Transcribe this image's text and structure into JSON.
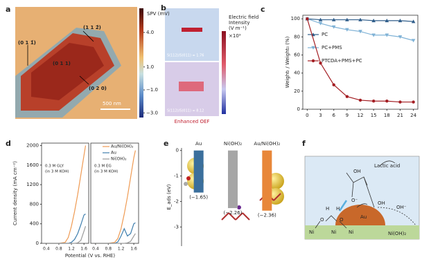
{
  "panel_letters": [
    "a",
    "b",
    "c",
    "d",
    "e",
    "f"
  ],
  "panel_a": {
    "colorbar_title": "SPV (mV)",
    "colorbar_lim": [
      -3.4,
      6.1
    ],
    "colorbar_ticks": [
      {
        "value": 4,
        "label": "4.0"
      },
      {
        "value": 1,
        "label": "1.0"
      },
      {
        "value": -1,
        "label": "−1.0"
      },
      {
        "value": -3,
        "label": "−3.0"
      }
    ],
    "labels": [
      "(0 1 1̄)",
      "(1 1 2̄)",
      "(0 1 1)",
      "(0 2 0)"
    ],
    "scale_bar": "500 nm"
  },
  "panel_b": {
    "colorbar_title": [
      "Electric field",
      "Intensity",
      "(V m⁻¹)"
    ],
    "colorbar_scale": "×10⁹",
    "labels": [
      "S(112)/S(011) = 1.76",
      "S(112)/S(011) = 8.12"
    ],
    "caption": "Enhanced OEF"
  },
  "panel_f": {
    "labels": [
      "Lactic acid",
      "OH",
      "O⁻",
      "OH",
      "OH⁻",
      "Au",
      "Ni(OH)₂",
      "H",
      "O",
      "H",
      "O",
      "Ni",
      "Ni",
      "Ni"
    ]
  },
  "chart_data": [
    {
      "type": "line",
      "ylabel": "Weightₜ / Weight₀ (%)",
      "x": [
        0,
        3,
        6,
        9,
        12,
        15,
        18,
        21,
        24
      ],
      "xlim": [
        -1,
        25
      ],
      "xticks": [
        0,
        3,
        6,
        9,
        12,
        15,
        18,
        21,
        24
      ],
      "ylim": [
        0,
        104
      ],
      "yticks": [
        0,
        20,
        40,
        60,
        80,
        100
      ],
      "legend": "right",
      "series": [
        {
          "name": "PC",
          "color": "#2f5d8a",
          "marker": "triangle-up",
          "values": [
            100,
            99,
            99,
            99,
            99,
            98,
            98,
            98,
            97
          ]
        },
        {
          "name": "PC+PMS",
          "color": "#7fb2d6",
          "marker": "triangle-down",
          "values": [
            100,
            95,
            91,
            88,
            86,
            82,
            82,
            80,
            76
          ]
        },
        {
          "name": "PTCDA+PMS+PC",
          "color": "#a31d22",
          "marker": "circle",
          "values": [
            100,
            51,
            27,
            14,
            10,
            9,
            9,
            8,
            8
          ]
        }
      ]
    },
    {
      "type": "line",
      "xlabel": "Potential (V vs. RHE)",
      "ylabel": "Current density (mA cm⁻²)",
      "x": [
        0.4,
        0.6,
        0.8,
        1.0,
        1.1,
        1.2,
        1.3,
        1.4,
        1.5,
        1.6,
        1.65
      ],
      "xlim": [
        0.25,
        1.75
      ],
      "xticks": [
        0.4,
        0.8,
        1.2,
        1.6
      ],
      "ylim": [
        0,
        2050
      ],
      "yticks": [
        0,
        400,
        800,
        1200,
        1600,
        2000
      ],
      "legend": [
        {
          "name": "Au/Ni(OH)₂",
          "color": "#ef9a52"
        },
        {
          "name": "Au",
          "color": "#3f7fae"
        },
        {
          "name": "Ni(OH)₂",
          "color": "#9a9a9a"
        }
      ],
      "subplots": [
        {
          "annotation": [
            "0.3 M GLY",
            "(in 3 M KOH)"
          ],
          "series": [
            {
              "values": [
                0,
                0,
                0,
                20,
                120,
                350,
                650,
                1000,
                1400,
                1800,
                2000
              ]
            },
            {
              "values": [
                0,
                0,
                0,
                0,
                0,
                20,
                80,
                200,
                380,
                580,
                600
              ]
            },
            {
              "values": [
                0,
                0,
                0,
                0,
                0,
                0,
                0,
                10,
                60,
                250,
                350
              ]
            }
          ]
        },
        {
          "annotation": [
            "0.3 M EG",
            "(in 3 M KOH)"
          ],
          "series": [
            {
              "values": [
                0,
                0,
                0,
                20,
                100,
                300,
                600,
                950,
                1350,
                1750,
                1900
              ]
            },
            {
              "values": [
                0,
                0,
                0,
                0,
                30,
                150,
                300,
                150,
                200,
                400,
                420
              ]
            },
            {
              "values": [
                0,
                0,
                0,
                0,
                0,
                0,
                0,
                10,
                40,
                150,
                200
              ]
            }
          ]
        }
      ]
    },
    {
      "type": "bar",
      "ylabel": "E_ads (eV)",
      "categories": [
        "Au",
        "Ni(OH)₂",
        "Au/Ni(OH)₂"
      ],
      "values": [
        -1.65,
        -2.26,
        -2.36
      ],
      "value_labels": [
        "(−1.65)",
        "(−2.26)",
        "(−2.36)"
      ],
      "colors": [
        "#3b6f9c",
        "#a6a6a6",
        "#e8873a"
      ],
      "ylim": [
        -3.75,
        0.1
      ],
      "yticks": [
        0,
        -1,
        -2,
        -3
      ]
    }
  ]
}
